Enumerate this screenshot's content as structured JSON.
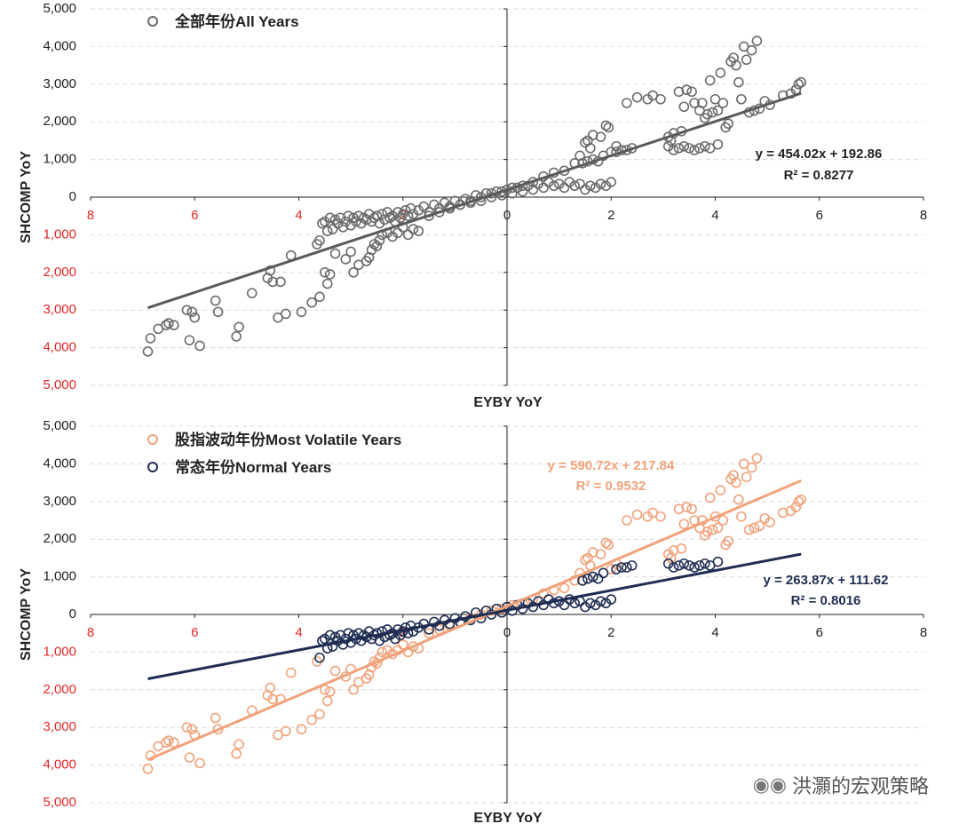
{
  "colors": {
    "all": "#6b6b6b",
    "all_line": "#5a5a5a",
    "volatile": "#f0a27a",
    "normal": "#1f2d52",
    "negative_tick": "#e32727",
    "grid": "#d9d9d9",
    "axis": "#222222"
  },
  "watermark": {
    "icon": "wechat-icon",
    "text": "洪灝的宏观策略"
  },
  "chart_data": [
    {
      "type": "scatter",
      "xlabel": "EYBY YoY",
      "ylabel": "SHCOMP YoY",
      "xlim": [
        -8,
        8
      ],
      "ylim": [
        -5000,
        5000
      ],
      "x_ticks": [
        -8,
        -6,
        -4,
        -2,
        0,
        2,
        4,
        6,
        8
      ],
      "x_tick_labels": [
        "8",
        "6",
        "4",
        "2",
        "0",
        "2",
        "4",
        "6",
        "8"
      ],
      "y_ticks": [
        5000,
        4000,
        3000,
        2000,
        1000,
        0,
        -1000,
        -2000,
        -3000,
        -4000,
        -5000
      ],
      "y_tick_labels": [
        "5,000",
        "4,000",
        "3,000",
        "2,000",
        "1,000",
        "0",
        "1,000",
        "2,000",
        "3,000",
        "4,000",
        "5,000"
      ],
      "grid": true,
      "series": [
        {
          "name": "全部年份All Years",
          "color_key": "all",
          "trend": {
            "slope": 454.02,
            "intercept": 192.86,
            "x_range": [
              -6.9,
              5.65
            ],
            "equation": "y = 454.02x + 192.86",
            "r2": "R² = 0.8277"
          }
        }
      ]
    },
    {
      "type": "scatter",
      "xlabel": "EYBY YoY",
      "ylabel": "SHCOMP YoY",
      "xlim": [
        -8,
        8
      ],
      "ylim": [
        -5000,
        5000
      ],
      "x_ticks": [
        -8,
        -6,
        -4,
        -2,
        0,
        2,
        4,
        6,
        8
      ],
      "x_tick_labels": [
        "8",
        "6",
        "4",
        "2",
        "0",
        "2",
        "4",
        "6",
        "8"
      ],
      "y_ticks": [
        5000,
        4000,
        3000,
        2000,
        1000,
        0,
        -1000,
        -2000,
        -3000,
        -4000,
        -5000
      ],
      "y_tick_labels": [
        "5,000",
        "4,000",
        "3,000",
        "2,000",
        "1,000",
        "0",
        "1,000",
        "2,000",
        "3,000",
        "4,000",
        "5,000"
      ],
      "grid": true,
      "series": [
        {
          "name": "股指波动年份Most Volatile Years",
          "color_key": "volatile",
          "trend": {
            "slope": 590.72,
            "intercept": 217.84,
            "x_range": [
              -6.9,
              5.65
            ],
            "equation": "y = 590.72x + 217.84",
            "r2": "R² = 0.9532"
          }
        },
        {
          "name": "常态年份Normal Years",
          "color_key": "normal",
          "trend": {
            "slope": 263.87,
            "intercept": 111.62,
            "x_range": [
              -6.9,
              5.65
            ],
            "equation": "y = 263.87x + 111.62",
            "r2": "R² = 0.8016"
          }
        }
      ]
    }
  ],
  "scatter_points": {
    "volatile": [
      [
        -6.9,
        -4100
      ],
      [
        -6.85,
        -3750
      ],
      [
        -6.7,
        -3500
      ],
      [
        -6.55,
        -3400
      ],
      [
        -6.5,
        -3350
      ],
      [
        -6.4,
        -3400
      ],
      [
        -6.15,
        -3000
      ],
      [
        -6.1,
        -3800
      ],
      [
        -6.05,
        -3050
      ],
      [
        -6.0,
        -3200
      ],
      [
        -5.9,
        -3950
      ],
      [
        -5.6,
        -2750
      ],
      [
        -5.55,
        -3050
      ],
      [
        -5.2,
        -3700
      ],
      [
        -5.15,
        -3450
      ],
      [
        -4.9,
        -2550
      ],
      [
        -4.6,
        -2150
      ],
      [
        -4.55,
        -1950
      ],
      [
        -4.5,
        -2250
      ],
      [
        -4.4,
        -3200
      ],
      [
        -4.35,
        -2250
      ],
      [
        -4.25,
        -3100
      ],
      [
        -4.15,
        -1550
      ],
      [
        -3.95,
        -3050
      ],
      [
        -3.75,
        -2800
      ],
      [
        -3.65,
        -1250
      ],
      [
        -3.6,
        -2650
      ],
      [
        -3.5,
        -2000
      ],
      [
        -3.45,
        -2300
      ],
      [
        -3.4,
        -2050
      ],
      [
        -3.3,
        -1500
      ],
      [
        -3.1,
        -1650
      ],
      [
        -3.0,
        -1450
      ],
      [
        -2.95,
        -2000
      ],
      [
        -2.85,
        -1800
      ],
      [
        -2.7,
        -1700
      ],
      [
        -2.65,
        -1600
      ],
      [
        -2.6,
        -1400
      ],
      [
        -2.55,
        -1250
      ],
      [
        -2.5,
        -1300
      ],
      [
        -2.45,
        -1150
      ],
      [
        -2.4,
        -1000
      ],
      [
        -2.3,
        -950
      ],
      [
        -2.2,
        -1050
      ],
      [
        -2.1,
        -950
      ],
      [
        -2.0,
        -800
      ],
      [
        -1.9,
        -1000
      ],
      [
        -1.8,
        -850
      ],
      [
        -1.7,
        -900
      ],
      [
        -1.5,
        -500
      ],
      [
        -1.3,
        -400
      ],
      [
        -1.1,
        -300
      ],
      [
        -0.9,
        -200
      ],
      [
        -0.7,
        -100
      ],
      [
        -0.5,
        0
      ],
      [
        -0.3,
        100
      ],
      [
        -0.1,
        150
      ],
      [
        0.1,
        250
      ],
      [
        0.3,
        300
      ],
      [
        0.5,
        400
      ],
      [
        0.7,
        550
      ],
      [
        0.9,
        650
      ],
      [
        1.1,
        700
      ],
      [
        1.3,
        900
      ],
      [
        1.4,
        1100
      ],
      [
        1.5,
        1450
      ],
      [
        1.55,
        1500
      ],
      [
        1.6,
        1300
      ],
      [
        1.65,
        1650
      ],
      [
        1.8,
        1600
      ],
      [
        1.9,
        1900
      ],
      [
        1.95,
        1850
      ],
      [
        2.0,
        1200
      ],
      [
        2.1,
        1350
      ],
      [
        2.3,
        2500
      ],
      [
        2.5,
        2650
      ],
      [
        2.7,
        2600
      ],
      [
        2.8,
        2700
      ],
      [
        2.95,
        2600
      ],
      [
        3.1,
        1600
      ],
      [
        3.15,
        1500
      ],
      [
        3.2,
        1700
      ],
      [
        3.3,
        2800
      ],
      [
        3.35,
        1750
      ],
      [
        3.4,
        2400
      ],
      [
        3.45,
        2850
      ],
      [
        3.55,
        2800
      ],
      [
        3.6,
        2500
      ],
      [
        3.7,
        2300
      ],
      [
        3.75,
        2500
      ],
      [
        3.8,
        2100
      ],
      [
        3.85,
        2200
      ],
      [
        3.9,
        3100
      ],
      [
        3.95,
        2250
      ],
      [
        4.0,
        2600
      ],
      [
        4.05,
        2300
      ],
      [
        4.1,
        3300
      ],
      [
        4.15,
        2500
      ],
      [
        4.2,
        1850
      ],
      [
        4.25,
        1950
      ],
      [
        4.3,
        3600
      ],
      [
        4.35,
        3700
      ],
      [
        4.4,
        3500
      ],
      [
        4.45,
        3050
      ],
      [
        4.5,
        2600
      ],
      [
        4.55,
        4000
      ],
      [
        4.6,
        3650
      ],
      [
        4.65,
        2250
      ],
      [
        4.7,
        3900
      ],
      [
        4.75,
        2300
      ],
      [
        4.8,
        4150
      ],
      [
        4.85,
        2350
      ],
      [
        4.95,
        2550
      ],
      [
        5.05,
        2450
      ],
      [
        5.3,
        2700
      ],
      [
        5.45,
        2750
      ],
      [
        5.6,
        3000
      ],
      [
        5.65,
        3050
      ],
      [
        5.55,
        2850
      ]
    ],
    "normal": [
      [
        -3.6,
        -1150
      ],
      [
        -3.55,
        -700
      ],
      [
        -3.5,
        -650
      ],
      [
        -3.45,
        -900
      ],
      [
        -3.4,
        -550
      ],
      [
        -3.35,
        -850
      ],
      [
        -3.3,
        -600
      ],
      [
        -3.25,
        -700
      ],
      [
        -3.2,
        -550
      ],
      [
        -3.15,
        -800
      ],
      [
        -3.1,
        -650
      ],
      [
        -3.05,
        -500
      ],
      [
        -3.0,
        -750
      ],
      [
        -2.95,
        -550
      ],
      [
        -2.9,
        -650
      ],
      [
        -2.85,
        -500
      ],
      [
        -2.8,
        -700
      ],
      [
        -2.75,
        -550
      ],
      [
        -2.7,
        -600
      ],
      [
        -2.65,
        -450
      ],
      [
        -2.6,
        -650
      ],
      [
        -2.55,
        -550
      ],
      [
        -2.5,
        -500
      ],
      [
        -2.45,
        -700
      ],
      [
        -2.4,
        -450
      ],
      [
        -2.35,
        -600
      ],
      [
        -2.3,
        -400
      ],
      [
        -2.25,
        -550
      ],
      [
        -2.2,
        -500
      ],
      [
        -2.15,
        -650
      ],
      [
        -2.1,
        -400
      ],
      [
        -2.05,
        -550
      ],
      [
        -2.0,
        -450
      ],
      [
        -1.95,
        -350
      ],
      [
        -1.9,
        -500
      ],
      [
        -1.85,
        -300
      ],
      [
        -1.8,
        -450
      ],
      [
        -1.7,
        -350
      ],
      [
        -1.6,
        -250
      ],
      [
        -1.5,
        -400
      ],
      [
        -1.4,
        -200
      ],
      [
        -1.3,
        -300
      ],
      [
        -1.2,
        -150
      ],
      [
        -1.1,
        -250
      ],
      [
        -1.0,
        -100
      ],
      [
        -0.9,
        -200
      ],
      [
        -0.8,
        -50
      ],
      [
        -0.7,
        -150
      ],
      [
        -0.6,
        50
      ],
      [
        -0.5,
        -100
      ],
      [
        -0.4,
        100
      ],
      [
        -0.3,
        0
      ],
      [
        -0.2,
        150
      ],
      [
        -0.1,
        50
      ],
      [
        0.0,
        200
      ],
      [
        0.1,
        100
      ],
      [
        0.2,
        250
      ],
      [
        0.3,
        150
      ],
      [
        0.4,
        300
      ],
      [
        0.5,
        200
      ],
      [
        0.6,
        350
      ],
      [
        0.7,
        250
      ],
      [
        0.8,
        400
      ],
      [
        0.9,
        300
      ],
      [
        1.0,
        350
      ],
      [
        1.1,
        250
      ],
      [
        1.2,
        400
      ],
      [
        1.3,
        300
      ],
      [
        1.4,
        350
      ],
      [
        1.5,
        200
      ],
      [
        1.6,
        300
      ],
      [
        1.7,
        250
      ],
      [
        1.8,
        350
      ],
      [
        1.9,
        300
      ],
      [
        2.0,
        400
      ],
      [
        1.45,
        900
      ],
      [
        1.55,
        950
      ],
      [
        1.65,
        1000
      ],
      [
        1.75,
        950
      ],
      [
        1.85,
        1100
      ],
      [
        2.1,
        1200
      ],
      [
        2.2,
        1250
      ],
      [
        2.3,
        1250
      ],
      [
        2.4,
        1300
      ],
      [
        3.1,
        1350
      ],
      [
        3.2,
        1250
      ],
      [
        3.3,
        1300
      ],
      [
        3.4,
        1350
      ],
      [
        3.5,
        1300
      ],
      [
        3.6,
        1250
      ],
      [
        3.7,
        1300
      ],
      [
        3.8,
        1350
      ],
      [
        3.9,
        1300
      ],
      [
        4.05,
        1400
      ]
    ]
  }
}
